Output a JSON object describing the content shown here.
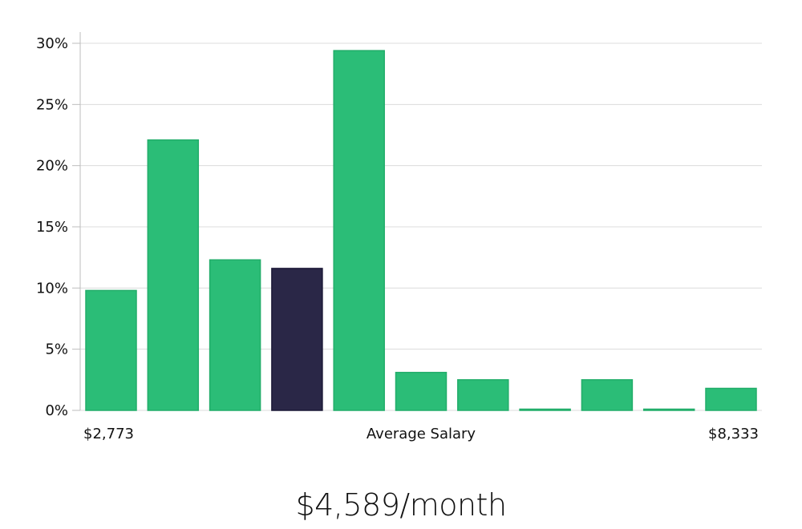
{
  "chart_data": {
    "type": "bar",
    "colors": {
      "default": "#2bbd77",
      "highlight": "#2a2747",
      "grid": "#dcdcdc",
      "axis": "#bdbdbd"
    },
    "highlight_index": 3,
    "values": [
      9.8,
      22.1,
      12.3,
      11.6,
      29.4,
      3.1,
      2.5,
      0.1,
      2.5,
      0.1,
      1.8
    ],
    "ylim": [
      0,
      30
    ],
    "ytick_values": [
      0,
      5,
      10,
      15,
      20,
      25,
      30
    ],
    "ytick_labels": [
      "0%",
      "5%",
      "10%",
      "15%",
      "20%",
      "25%",
      "30%"
    ],
    "grid": true,
    "x_min_label": "$2,773",
    "x_max_label": "$8,333",
    "xlabel": "Average Salary"
  },
  "headline": "$4,589/month"
}
